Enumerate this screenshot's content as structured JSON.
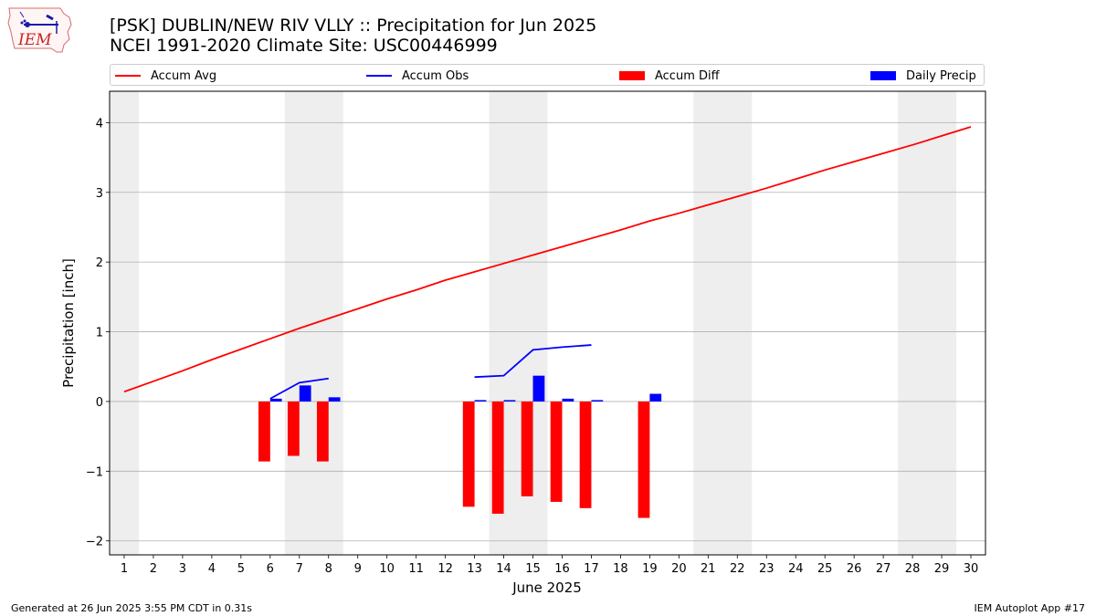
{
  "header": {
    "logo_text": "IEM",
    "title_line1": "[PSK] DUBLIN/NEW RIV VLLY :: Precipitation for Jun 2025",
    "title_line2": "NCEI 1991-2020 Climate Site: USC00446999"
  },
  "footer": {
    "left": "Generated at 26 Jun 2025 3:55 PM CDT in 0.31s",
    "right": "IEM Autoplot App #17"
  },
  "colors": {
    "avg": "#ff0000",
    "obs": "#0000ff",
    "diff": "#ff0000",
    "daily": "#0000ff",
    "weekend": "#eeeeee",
    "grid": "#b0b0b0"
  },
  "chart_data": {
    "type": "bar",
    "xlabel": "June 2025",
    "ylabel": "Precipitation [inch]",
    "xlim": [
      0.5,
      30.5
    ],
    "ylim": [
      -2.2,
      4.45
    ],
    "yticks": [
      -2,
      -1,
      0,
      1,
      2,
      3,
      4
    ],
    "ytick_labels": [
      "−2",
      "−1",
      "0",
      "1",
      "2",
      "3",
      "4"
    ],
    "x": [
      1,
      2,
      3,
      4,
      5,
      6,
      7,
      8,
      9,
      10,
      11,
      12,
      13,
      14,
      15,
      16,
      17,
      18,
      19,
      20,
      21,
      22,
      23,
      24,
      25,
      26,
      27,
      28,
      29,
      30
    ],
    "x_tick_labels": [
      "1",
      "2",
      "3",
      "4",
      "5",
      "6",
      "7",
      "8",
      "9",
      "10",
      "11",
      "12",
      "13",
      "14",
      "15",
      "16",
      "17",
      "18",
      "19",
      "20",
      "21",
      "22",
      "23",
      "24",
      "25",
      "26",
      "27",
      "28",
      "29",
      "30"
    ],
    "grid": "horizontal",
    "weekend_shading": [
      [
        0.5,
        1.5
      ],
      [
        6.5,
        8.5
      ],
      [
        13.5,
        15.5
      ],
      [
        20.5,
        22.5
      ],
      [
        27.5,
        29.5
      ]
    ],
    "legend": [
      "Accum Avg",
      "Accum Obs",
      "Accum Diff",
      "Daily Precip"
    ],
    "series": [
      {
        "name": "Accum Avg",
        "kind": "line",
        "x": [
          1,
          2,
          3,
          4,
          5,
          6,
          7,
          8,
          9,
          10,
          11,
          12,
          13,
          14,
          15,
          16,
          17,
          18,
          19,
          20,
          21,
          22,
          23,
          24,
          25,
          26,
          27,
          28,
          29,
          30
        ],
        "values": [
          0.14,
          0.29,
          0.44,
          0.6,
          0.75,
          0.9,
          1.05,
          1.19,
          1.33,
          1.47,
          1.6,
          1.74,
          1.86,
          1.98,
          2.1,
          2.22,
          2.34,
          2.46,
          2.59,
          2.7,
          2.82,
          2.94,
          3.06,
          3.19,
          3.32,
          3.44,
          3.56,
          3.68,
          3.81,
          3.94
        ]
      },
      {
        "name": "Accum Obs",
        "kind": "line",
        "segments": [
          {
            "x": [
              6,
              7,
              8
            ],
            "values": [
              0.04,
              0.27,
              0.33
            ]
          },
          {
            "x": [
              13,
              14,
              15,
              16,
              17
            ],
            "values": [
              0.35,
              0.37,
              0.74,
              0.78,
              0.81
            ]
          }
        ]
      },
      {
        "name": "Accum Diff",
        "kind": "bar",
        "x": [
          6,
          7,
          8,
          13,
          14,
          15,
          16,
          17,
          19
        ],
        "values": [
          -0.86,
          -0.78,
          -0.86,
          -1.51,
          -1.61,
          -1.36,
          -1.44,
          -1.53,
          -1.67
        ]
      },
      {
        "name": "Daily Precip",
        "kind": "bar",
        "x": [
          6,
          7,
          8,
          13,
          14,
          15,
          16,
          17,
          19
        ],
        "values": [
          0.04,
          0.23,
          0.06,
          0.02,
          0.02,
          0.37,
          0.04,
          0.02,
          0.11
        ]
      }
    ]
  }
}
